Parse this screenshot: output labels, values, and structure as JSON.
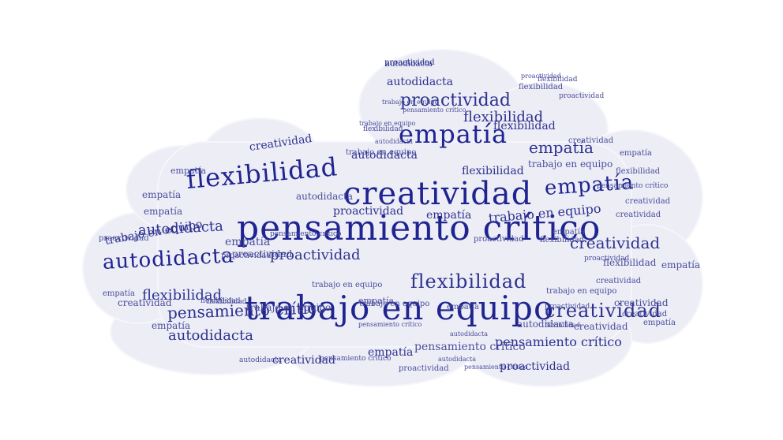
{
  "colors": {
    "cloud_fill": "#ededf6",
    "word_dark": "#1f2490",
    "word_mid": "#2d328f",
    "word_light": "#4a4e9c"
  },
  "words": [
    {
      "text": "pensamiento crítico",
      "tone": "dark"
    },
    {
      "text": "trabajo en equipo",
      "tone": "dark"
    },
    {
      "text": "creatividad",
      "tone": "dark"
    },
    {
      "text": "flexibilidad",
      "tone": "dark"
    },
    {
      "text": "empatía",
      "tone": "dark"
    },
    {
      "text": "empatía",
      "tone": "dark"
    },
    {
      "text": "autodidacta",
      "tone": "dark"
    },
    {
      "text": "proactividad",
      "tone": "mid"
    },
    {
      "text": "flexibilidad",
      "tone": "mid"
    },
    {
      "text": "creatividad",
      "tone": "mid"
    },
    {
      "text": "creatividad",
      "tone": "mid"
    },
    {
      "text": "pensamiento crítico",
      "tone": "mid"
    },
    {
      "text": "autodidacta",
      "tone": "mid"
    },
    {
      "text": "proactividad",
      "tone": "mid"
    },
    {
      "text": "flexibilidad",
      "tone": "mid"
    },
    {
      "text": "autodidacta",
      "tone": "mid"
    },
    {
      "text": "trabajo en equipo",
      "tone": "mid"
    },
    {
      "text": "trabajo en equipo",
      "tone": "mid"
    },
    {
      "text": "pensamiento crítico",
      "tone": "mid"
    },
    {
      "text": "proactividad",
      "tone": "mid"
    },
    {
      "text": "empatía",
      "tone": "mid"
    },
    {
      "text": "flexibilidad",
      "tone": "mid"
    },
    {
      "text": "flexibilidad",
      "tone": "mid"
    },
    {
      "text": "autodidacta",
      "tone": "mid"
    },
    {
      "text": "flexibilidad",
      "tone": "mid"
    },
    {
      "text": "creatividad",
      "tone": "mid"
    },
    {
      "text": "empatía",
      "tone": "mid"
    },
    {
      "text": "proactividad",
      "tone": "mid"
    },
    {
      "text": "creatividad",
      "tone": "mid"
    },
    {
      "text": "empatía",
      "tone": "mid"
    },
    {
      "text": "autodidacta",
      "tone": "mid"
    },
    {
      "text": "autodidacta",
      "tone": "mid"
    },
    {
      "text": "proactividad",
      "tone": "mid"
    },
    {
      "text": "empatía",
      "tone": "light"
    },
    {
      "text": "empatía",
      "tone": "light"
    },
    {
      "text": "trabajo en equipo",
      "tone": "light"
    },
    {
      "text": "creatividad",
      "tone": "light"
    },
    {
      "text": "creatividad",
      "tone": "light"
    },
    {
      "text": "pensamiento crítico",
      "tone": "light"
    },
    {
      "text": "flexibilidad",
      "tone": "light"
    },
    {
      "text": "empatía",
      "tone": "light"
    },
    {
      "text": "empatía",
      "tone": "light"
    },
    {
      "text": "trabajo en equipo",
      "tone": "light"
    },
    {
      "text": "creatividad",
      "tone": "light"
    },
    {
      "text": "creatividad",
      "tone": "light"
    },
    {
      "text": "trabajo en equipo",
      "tone": "light"
    },
    {
      "text": "empatía",
      "tone": "light"
    },
    {
      "text": "empatía",
      "tone": "light"
    },
    {
      "text": "pensamiento crítico",
      "tone": "light"
    },
    {
      "text": "creatividad",
      "tone": "light"
    },
    {
      "text": "empatía",
      "tone": "light"
    },
    {
      "text": "proactividad",
      "tone": "light"
    },
    {
      "text": "creatividad",
      "tone": "light"
    },
    {
      "text": "creatividad",
      "tone": "light"
    },
    {
      "text": "proactividad",
      "tone": "light"
    },
    {
      "text": "flexibilidad",
      "tone": "light"
    },
    {
      "text": "trabajo en equipo",
      "tone": "light"
    },
    {
      "text": "autodidacta",
      "tone": "light"
    },
    {
      "text": "proactividad",
      "tone": "light"
    },
    {
      "text": "trabajo en equipo",
      "tone": "light"
    },
    {
      "text": "proactividad",
      "tone": "light"
    },
    {
      "text": "empatía",
      "tone": "light"
    },
    {
      "text": "trabajo en equipo",
      "tone": "light"
    },
    {
      "text": "autodidacta",
      "tone": "light"
    },
    {
      "text": "flexibilidad",
      "tone": "light"
    },
    {
      "text": "pensamiento crítico",
      "tone": "light"
    },
    {
      "text": "empatía",
      "tone": "light"
    },
    {
      "text": "flexibilidad",
      "tone": "light"
    },
    {
      "text": "pensamiento crítico",
      "tone": "light"
    },
    {
      "text": "proactividad",
      "tone": "light"
    },
    {
      "text": "empatía",
      "tone": "light"
    },
    {
      "text": "flexibilidad",
      "tone": "light"
    },
    {
      "text": "autodidacta",
      "tone": "light"
    },
    {
      "text": "empatía",
      "tone": "light"
    },
    {
      "text": "proactividad",
      "tone": "light"
    },
    {
      "text": "proactividad",
      "tone": "light"
    },
    {
      "text": "empatía",
      "tone": "light"
    },
    {
      "text": "pensamiento crítico",
      "tone": "light"
    },
    {
      "text": "creatividad",
      "tone": "light"
    },
    {
      "text": "flexibilidad",
      "tone": "light"
    },
    {
      "text": "flexibilidad",
      "tone": "light"
    },
    {
      "text": "proactividad",
      "tone": "light"
    },
    {
      "text": "flexibilidad",
      "tone": "light"
    },
    {
      "text": "flexibilidad",
      "tone": "light"
    },
    {
      "text": "pensamiento crítico",
      "tone": "light"
    },
    {
      "text": "trabajo en equipo",
      "tone": "light"
    },
    {
      "text": "autodidacta",
      "tone": "light"
    },
    {
      "text": "pensamiento crítico",
      "tone": "light"
    },
    {
      "text": "trabajo en equipo",
      "tone": "light"
    },
    {
      "text": "proactividad",
      "tone": "light"
    },
    {
      "text": "autodidacta",
      "tone": "light"
    },
    {
      "text": "autodidacta",
      "tone": "light"
    }
  ]
}
